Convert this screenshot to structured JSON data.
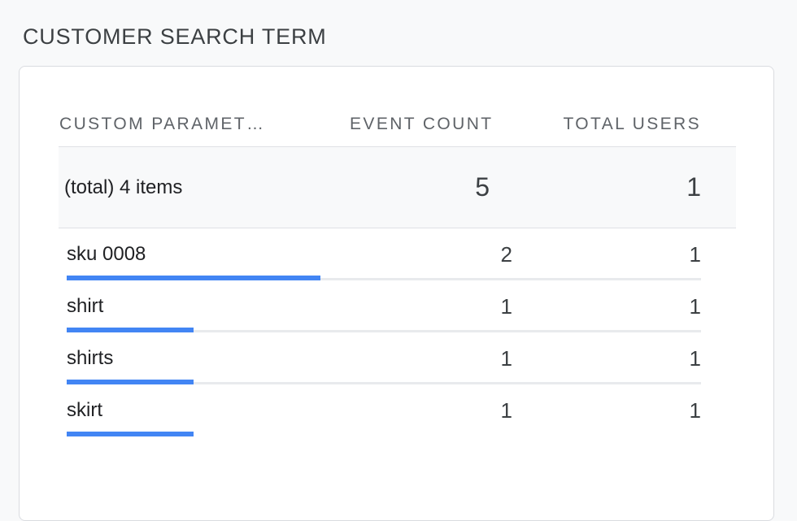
{
  "title": "CUSTOMER SEARCH TERM",
  "table": {
    "columns": {
      "term": "CUSTOM PARAMET…",
      "event_count": "EVENT COUNT",
      "total_users": "TOTAL USERS"
    },
    "totals": {
      "label": "(total) 4 items",
      "event_count": "5",
      "total_users": "1"
    },
    "rows": [
      {
        "term": "sku 0008",
        "event_count": "2",
        "total_users": "1",
        "bar_pct": 40
      },
      {
        "term": "shirt",
        "event_count": "1",
        "total_users": "1",
        "bar_pct": 20
      },
      {
        "term": "shirts",
        "event_count": "1",
        "total_users": "1",
        "bar_pct": 20
      },
      {
        "term": "skirt",
        "event_count": "1",
        "total_users": "1",
        "bar_pct": 20
      }
    ]
  },
  "colors": {
    "bar": "#4285f4",
    "bar_track": "#e8eaed",
    "card_border": "#dadce0",
    "totals_background": "#f8f9fa",
    "header_text": "#5f6368",
    "body_text": "#202124"
  }
}
